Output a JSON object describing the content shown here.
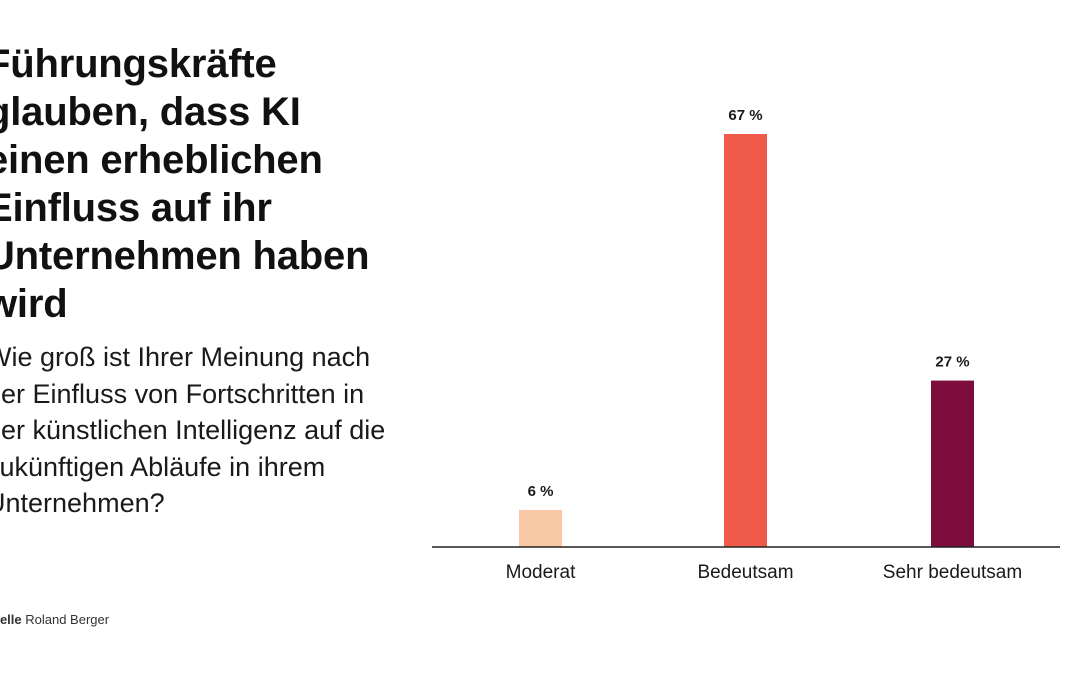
{
  "headline": {
    "title": "Führungskräfte glauben, dass KI einen erheblichen Einfluss auf ihr Unternehmen haben wird",
    "question": "Wie groß ist Ihrer Meinung nach der Einfluss von Fortschritten in der künstlichen Intelligenz auf die zukünftigen Abläufe in ihrem Unternehmen?"
  },
  "source": {
    "label": "uelle",
    "name": "Roland Berger"
  },
  "chart_data": {
    "type": "bar",
    "title": "",
    "xlabel": "",
    "ylabel": "",
    "ylim": [
      0,
      67
    ],
    "grid": false,
    "categories": [
      "Moderat",
      "Bedeutsam",
      "Sehr bedeutsam"
    ],
    "values": [
      6,
      67,
      27
    ],
    "value_labels": [
      "6 %",
      "67 %",
      "27 %"
    ],
    "colors": [
      "#f9c9a6",
      "#f05a4a",
      "#7d0d3c"
    ],
    "axis_color": "#222222"
  }
}
